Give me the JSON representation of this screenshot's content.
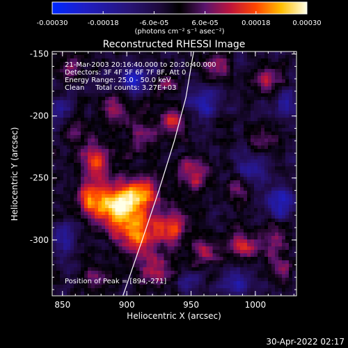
{
  "chart_data": {
    "type": "heatmap",
    "title": "Reconstructed RHESSI Image",
    "xlabel": "Heliocentric X (arcsec)",
    "ylabel": "Heliocentric Y (arcsec)",
    "xlim": [
      842,
      1032
    ],
    "ylim": [
      -345,
      -148
    ],
    "x_ticks": [
      850,
      900,
      950,
      1000
    ],
    "y_ticks": [
      -150,
      -200,
      -250,
      -300
    ],
    "colorbar": {
      "range": [
        -0.0003,
        0.0003
      ],
      "tick_values": [
        -0.0003,
        -0.00018,
        -6e-05,
        6e-05,
        0.00018,
        0.0003
      ],
      "tick_labels": [
        "-0.00030",
        "-0.00018",
        "-6.0e-05",
        "6.0e-05",
        "0.00018",
        "0.00030"
      ],
      "unit_label": "(photons cm⁻² s⁻¹ asec⁻²)"
    },
    "annotations": [
      "21-Mar-2003 20:16:40.000 to 20:20:40.000",
      "Detectors: 3F 4F 5F 6F 7F 8F, Att 0",
      "Energy Range: 25.0 - 50.0 keV",
      "Clean     Total counts: 3.27E+03"
    ],
    "peak_label": "Position of Peak = [894,-271]",
    "peak": [
      894,
      -271
    ],
    "limb_curve": [
      [
        897,
        -345
      ],
      [
        912,
        -300
      ],
      [
        925,
        -260
      ],
      [
        937,
        -220
      ],
      [
        946,
        -185
      ],
      [
        952,
        -148
      ]
    ],
    "sources": [
      {
        "x": 893,
        "y": -275,
        "value": 0.0003,
        "sx": 10,
        "sy": 14
      },
      {
        "x": 872,
        "y": -268,
        "value": 0.00022,
        "sx": 9,
        "sy": 11
      },
      {
        "x": 912,
        "y": -265,
        "value": 0.00023,
        "sx": 10,
        "sy": 12
      },
      {
        "x": 910,
        "y": -300,
        "value": 0.00024,
        "sx": 9,
        "sy": 11
      },
      {
        "x": 935,
        "y": -290,
        "value": 0.0002,
        "sx": 9,
        "sy": 11
      },
      {
        "x": 925,
        "y": -325,
        "value": 0.00016,
        "sx": 10,
        "sy": 9
      },
      {
        "x": 875,
        "y": -235,
        "value": 0.00018,
        "sx": 8,
        "sy": 11
      },
      {
        "x": 890,
        "y": -195,
        "value": 0.00014,
        "sx": 8,
        "sy": 9
      },
      {
        "x": 912,
        "y": -215,
        "value": 0.00013,
        "sx": 8,
        "sy": 10
      },
      {
        "x": 935,
        "y": -205,
        "value": 0.00015,
        "sx": 8,
        "sy": 9
      },
      {
        "x": 952,
        "y": -245,
        "value": 0.00016,
        "sx": 8,
        "sy": 10
      },
      {
        "x": 990,
        "y": -260,
        "value": 0.00012,
        "sx": 8,
        "sy": 9
      },
      {
        "x": 960,
        "y": -310,
        "value": 0.00013,
        "sx": 7,
        "sy": 9
      },
      {
        "x": 990,
        "y": -305,
        "value": 0.00018,
        "sx": 9,
        "sy": 8
      },
      {
        "x": 1015,
        "y": -300,
        "value": 0.00014,
        "sx": 7,
        "sy": 9
      },
      {
        "x": 1005,
        "y": -220,
        "value": 0.00011,
        "sx": 8,
        "sy": 8
      },
      {
        "x": 970,
        "y": -160,
        "value": 0.00012,
        "sx": 8,
        "sy": 7
      },
      {
        "x": 1010,
        "y": -170,
        "value": 0.00012,
        "sx": 8,
        "sy": 8
      },
      {
        "x": 855,
        "y": -162,
        "value": 0.00012,
        "sx": 7,
        "sy": 8
      },
      {
        "x": 860,
        "y": -210,
        "value": 0.0001,
        "sx": 6,
        "sy": 8
      },
      {
        "x": 875,
        "y": -330,
        "value": 0.0001,
        "sx": 8,
        "sy": 7
      },
      {
        "x": 930,
        "y": -175,
        "value": 0.0001,
        "sx": 7,
        "sy": 7
      },
      {
        "x": 1020,
        "y": -325,
        "value": 0.00012,
        "sx": 7,
        "sy": 7
      },
      {
        "x": 905,
        "y": -170,
        "value": -0.00018,
        "sx": 9,
        "sy": 7
      },
      {
        "x": 960,
        "y": -190,
        "value": -0.00015,
        "sx": 8,
        "sy": 8
      },
      {
        "x": 1000,
        "y": -245,
        "value": -0.00016,
        "sx": 9,
        "sy": 9
      },
      {
        "x": 985,
        "y": -335,
        "value": -0.00014,
        "sx": 8,
        "sy": 7
      },
      {
        "x": 1020,
        "y": -270,
        "value": -0.00018,
        "sx": 7,
        "sy": 9
      },
      {
        "x": 850,
        "y": -300,
        "value": -0.00012,
        "sx": 7,
        "sy": 9
      },
      {
        "x": 850,
        "y": -195,
        "value": -0.0001,
        "sx": 6,
        "sy": 7
      },
      {
        "x": 1025,
        "y": -190,
        "value": -0.00012,
        "sx": 6,
        "sy": 8
      },
      {
        "x": 945,
        "y": -335,
        "value": -0.0001,
        "sx": 7,
        "sy": 6
      }
    ]
  },
  "footer": {
    "date": "30-Apr-2022 02:17"
  }
}
